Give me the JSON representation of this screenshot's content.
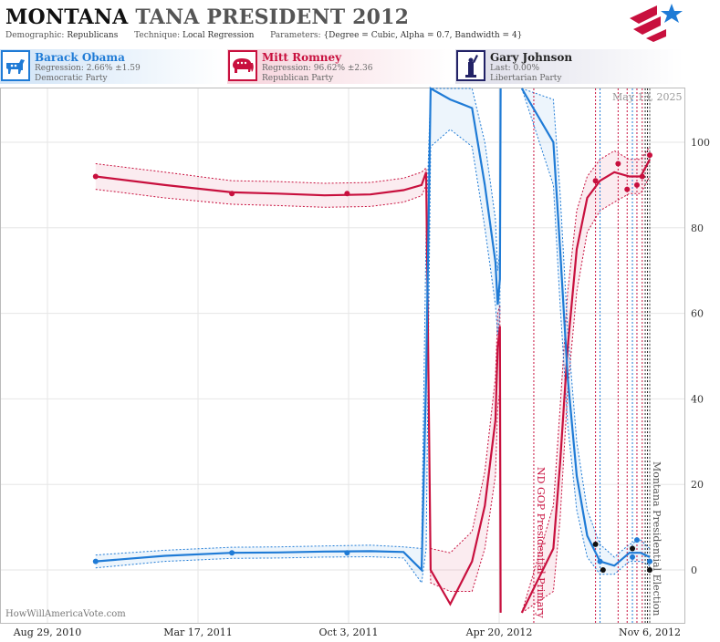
{
  "header": {
    "state": "MONTANA",
    "race": "TANA PRESIDENT 2012",
    "demographic_label": "Demographic:",
    "demographic_value": "Republicans",
    "technique_label": "Technique:",
    "technique_value": "Local Regression",
    "parameters_label": "Parameters:",
    "parameters_value": "{Degree = Cubic, Alpha = 0.7, Bandwidth = 4}"
  },
  "candidates": [
    {
      "name": "Barack Obama",
      "stat": "Regression: 2.66% ±1.59",
      "party": "Democratic Party",
      "color": "#1f7bd6",
      "icon": "donkey-icon"
    },
    {
      "name": "Mitt Romney",
      "stat": "Regression: 96.62% ±2.36",
      "party": "Republican Party",
      "color": "#c8103e",
      "icon": "elephant-icon"
    },
    {
      "name": "Gary Johnson",
      "stat": "Last: 0.00%",
      "party": "Libertarian Party",
      "color": "#222266",
      "icon": "statue-of-liberty-icon"
    }
  ],
  "footer": {
    "watermark": "HowWillAmericaVote.com",
    "date_stamp": "May 13, 2025"
  },
  "logo_icon": "star-flag-logo-icon",
  "chart_data": {
    "type": "line",
    "title": "",
    "xlabel": "",
    "ylabel": "",
    "x_ticks": [
      "Aug 29, 2010",
      "Mar 17, 2011",
      "Oct 3, 2011",
      "Apr 20, 2012",
      "Nov 6, 2012"
    ],
    "xlim": [
      "2010-08-29",
      "2012-11-06"
    ],
    "ylim": [
      -8,
      113
    ],
    "y_ticks": [
      0,
      20,
      40,
      60,
      80,
      100
    ],
    "grid": true,
    "events": [
      {
        "date": "2012-06-05",
        "label": "ND GOP Presidential Primary",
        "color": "#c8103e"
      },
      {
        "date": "2012-11-06",
        "label": "Montana Presidential Election",
        "color": "#555555"
      }
    ],
    "poll_markers": {
      "red": [
        "2012-08-26",
        "2012-09-25",
        "2012-10-07",
        "2012-10-20",
        "2012-10-27"
      ],
      "blue": [
        "2012-09-01",
        "2012-10-14"
      ],
      "black": [
        "2012-10-31",
        "2012-11-03"
      ]
    },
    "series": [
      {
        "name": "Mitt Romney",
        "color": "#c8103e",
        "x": [
          "2010-11-01",
          "2011-02-01",
          "2011-05-01",
          "2011-07-01",
          "2011-09-01",
          "2011-11-01",
          "2011-12-15",
          "2012-01-08",
          "2012-01-14",
          "2012-01-20",
          "2012-02-15",
          "2012-03-15",
          "2012-04-01",
          "2012-04-15",
          "2012-04-18",
          "2012-04-21",
          "2012-04-22"
        ],
        "y": [
          92,
          90,
          88.3,
          88,
          87.6,
          87.8,
          88.8,
          90,
          93,
          0,
          -8,
          2,
          15,
          35,
          52,
          57,
          -10
        ],
        "lower": [
          89,
          87,
          85.5,
          85.2,
          84.8,
          85,
          86,
          87.5,
          90,
          -3,
          -5,
          -5,
          5,
          22,
          38,
          42,
          -10
        ],
        "upper": [
          95,
          93,
          91,
          90.8,
          90.4,
          90.6,
          91.6,
          93,
          94,
          5,
          4,
          9,
          23,
          45,
          60,
          62,
          -10
        ],
        "x2": [
          "2012-05-20",
          "2012-07-01",
          "2012-07-10",
          "2012-07-20",
          "2012-08-01",
          "2012-08-15",
          "2012-09-01",
          "2012-09-20",
          "2012-10-10",
          "2012-10-25",
          "2012-11-06"
        ],
        "y2": [
          -10,
          5,
          25,
          52,
          75,
          87,
          91,
          93,
          92,
          92,
          96
        ],
        "lower2": [
          -10,
          -5,
          12,
          42,
          65,
          79,
          84,
          86,
          88,
          88,
          92
        ],
        "upper2": [
          -10,
          15,
          38,
          65,
          84,
          92,
          96,
          98,
          96,
          96,
          99
        ],
        "points_x": [
          "2010-11-01",
          "2011-05-01",
          "2011-10-01",
          "2012-08-26",
          "2012-09-25",
          "2012-10-07",
          "2012-10-20",
          "2012-10-27",
          "2012-11-06"
        ],
        "points_y": [
          92,
          88,
          88,
          91,
          95,
          89,
          90,
          92,
          97
        ]
      },
      {
        "name": "Barack Obama",
        "color": "#1f7bd6",
        "x": [
          "2010-11-01",
          "2011-02-01",
          "2011-05-01",
          "2011-07-01",
          "2011-09-01",
          "2011-11-01",
          "2011-12-15",
          "2012-01-08",
          "2012-01-14",
          "2012-01-20",
          "2012-02-15",
          "2012-03-15",
          "2012-04-01",
          "2012-04-15",
          "2012-04-18",
          "2012-04-21",
          "2012-04-22"
        ],
        "y": [
          2,
          3.3,
          4,
          4.1,
          4.3,
          4.4,
          4.2,
          0,
          45,
          115,
          110,
          108,
          90,
          72,
          62,
          68,
          115
        ],
        "lower": [
          0.5,
          2,
          2.7,
          2.8,
          3,
          3.1,
          2.8,
          -3,
          5,
          99,
          103,
          99,
          80,
          62,
          55,
          60,
          115
        ],
        "upper": [
          3.5,
          4.6,
          5.3,
          5.4,
          5.6,
          5.8,
          5.4,
          5,
          80,
          118,
          118,
          115,
          100,
          82,
          70,
          75,
          115
        ],
        "x2": [
          "2012-05-20",
          "2012-07-01",
          "2012-07-10",
          "2012-07-20",
          "2012-08-01",
          "2012-08-15",
          "2012-09-01",
          "2012-09-20",
          "2012-10-10",
          "2012-10-25",
          "2012-11-06"
        ],
        "y2": [
          115,
          100,
          75,
          45,
          22,
          8,
          2,
          1,
          4,
          4,
          3
        ],
        "lower2": [
          115,
          90,
          62,
          34,
          14,
          3,
          -1,
          -1,
          2,
          2,
          1
        ],
        "upper2": [
          115,
          110,
          88,
          56,
          30,
          14,
          6,
          3,
          6,
          7,
          5
        ],
        "points_x": [
          "2010-11-01",
          "2011-05-01",
          "2011-10-01",
          "2012-09-01",
          "2012-10-14",
          "2012-10-20",
          "2012-11-06"
        ],
        "points_y": [
          2,
          4,
          4,
          2,
          3,
          7,
          2
        ]
      },
      {
        "name": "Gary Johnson",
        "color": "#111111",
        "x": [],
        "y": [],
        "points_x": [
          "2012-08-26",
          "2012-09-05",
          "2012-10-14",
          "2012-11-06"
        ],
        "points_y": [
          6,
          0,
          5,
          0
        ]
      }
    ]
  }
}
